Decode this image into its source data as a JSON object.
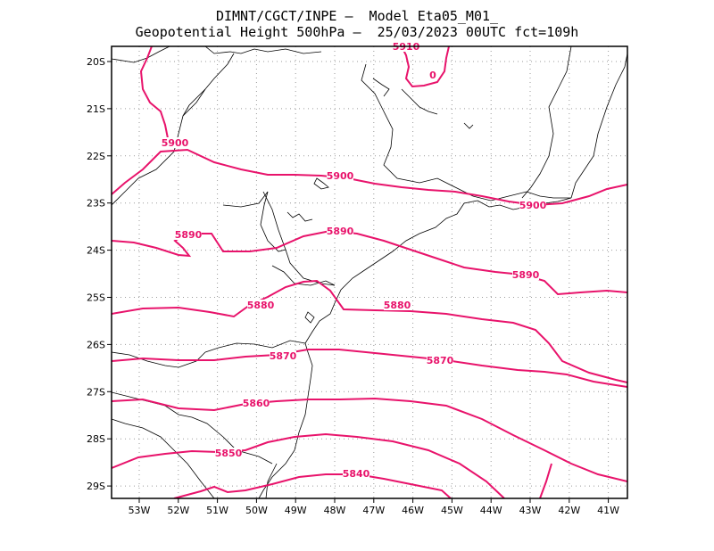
{
  "title_line1": "DIMNT/CGCT/INPE –  Model Eta05_M01_",
  "title_line2": "Geopotential Height 500hPa –  25/03/2023 00UTC fct=109h",
  "colors": {
    "contour": "#e8136b",
    "coast": "#000000",
    "grid": "#9a9a9a",
    "frame": "#000000"
  },
  "x_ticks": [
    "53W",
    "52W",
    "51W",
    "50W",
    "49W",
    "48W",
    "47W",
    "46W",
    "45W",
    "44W",
    "43W",
    "42W",
    "41W"
  ],
  "y_ticks": [
    "20S",
    "21S",
    "22S",
    "23S",
    "24S",
    "25S",
    "26S",
    "27S",
    "28S",
    "29S"
  ],
  "contour_labels": [
    {
      "text": "5910"
    },
    {
      "text": "0"
    },
    {
      "text": "5900"
    },
    {
      "text": "5900"
    },
    {
      "text": "5900"
    },
    {
      "text": "5890"
    },
    {
      "text": "5890"
    },
    {
      "text": "5890"
    },
    {
      "text": "5880"
    },
    {
      "text": "5880"
    },
    {
      "text": "5870"
    },
    {
      "text": "5870"
    },
    {
      "text": "5860"
    },
    {
      "text": "5850"
    },
    {
      "text": "5840"
    }
  ]
}
